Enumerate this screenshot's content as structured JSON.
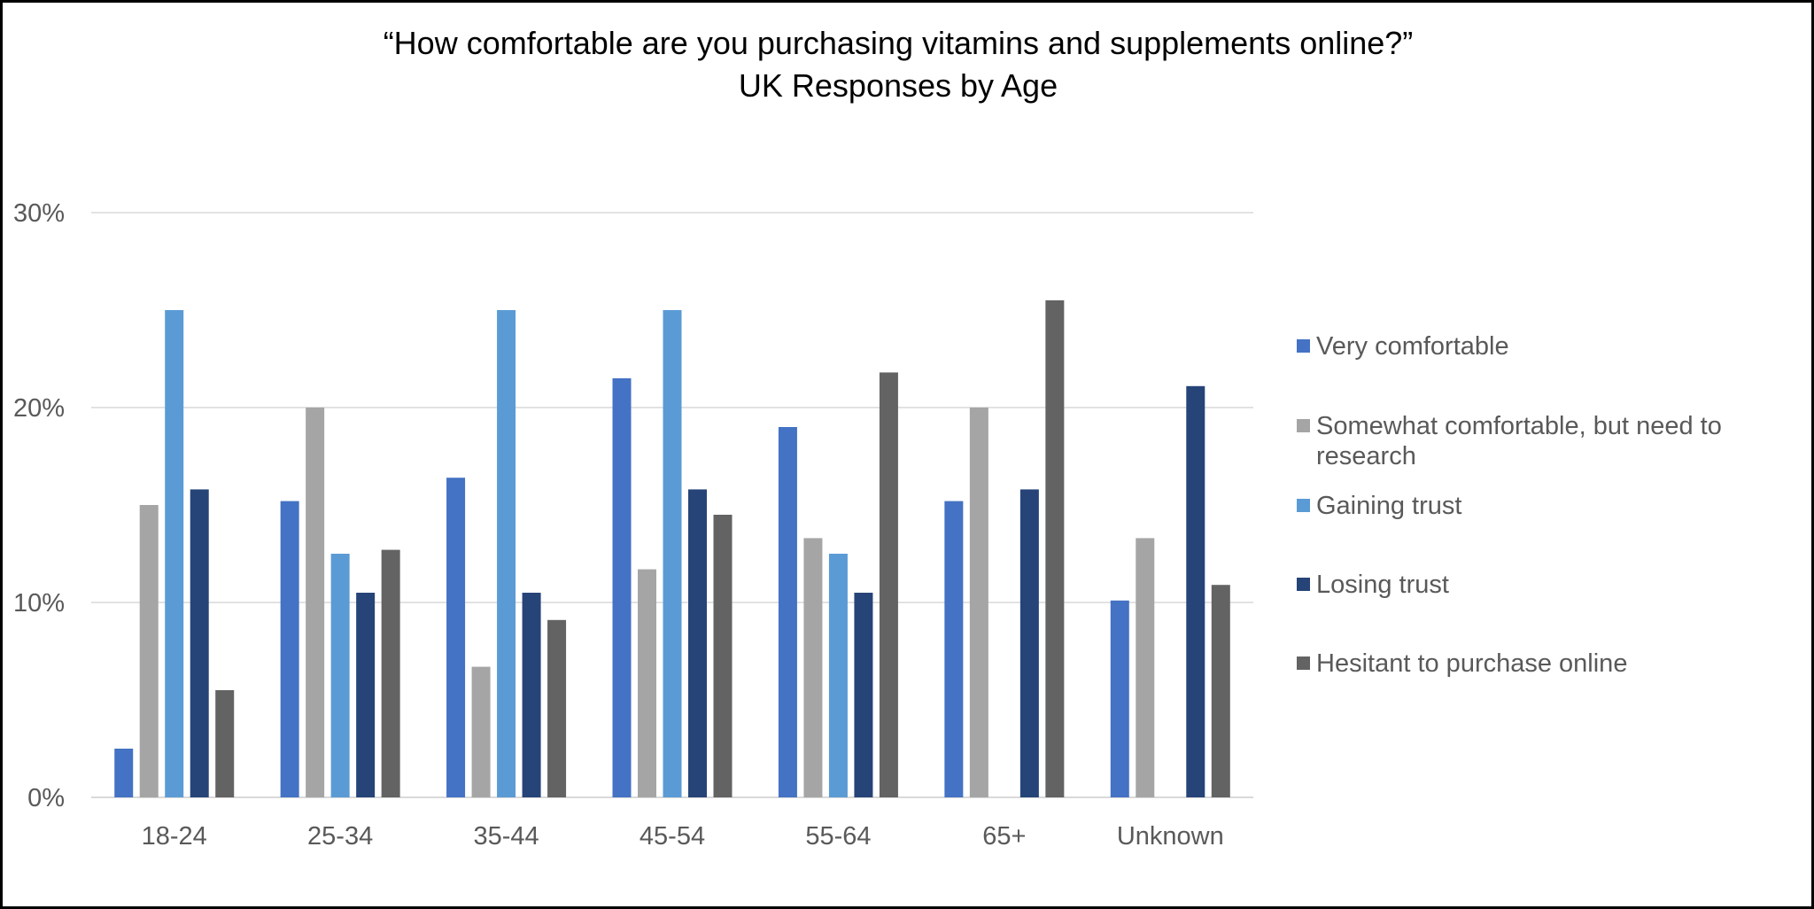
{
  "chart_data": {
    "type": "bar",
    "title": "“How comfortable are you purchasing vitamins and supplements online?”",
    "subtitle": "UK Responses by Age",
    "xlabel": "",
    "ylabel": "",
    "categories": [
      "18-24",
      "25-34",
      "35-44",
      "45-54",
      "55-64",
      "65+",
      "Unknown"
    ],
    "ylim": [
      0,
      30
    ],
    "yticks": [
      0,
      10,
      20,
      30
    ],
    "ytick_format": "percent",
    "grid": true,
    "legend_position": "right",
    "series": [
      {
        "name": "Very comfortable",
        "color": "#4472c4",
        "values": [
          2.5,
          15.2,
          16.4,
          21.5,
          19.0,
          15.2,
          10.1
        ]
      },
      {
        "name": "Somewhat comfortable, but need to research",
        "color": "#a5a5a5",
        "values": [
          15.0,
          20.0,
          6.7,
          11.7,
          13.3,
          20.0,
          13.3
        ]
      },
      {
        "name": "Gaining trust",
        "color": "#5b9bd5",
        "values": [
          25.0,
          12.5,
          25.0,
          25.0,
          12.5,
          0,
          0
        ]
      },
      {
        "name": "Losing trust",
        "color": "#264478",
        "values": [
          15.8,
          10.5,
          10.5,
          15.8,
          10.5,
          15.8,
          21.1
        ]
      },
      {
        "name": "Hesitant to purchase online",
        "color": "#636363",
        "values": [
          5.5,
          12.7,
          9.1,
          14.5,
          21.8,
          25.5,
          10.9
        ]
      }
    ]
  }
}
